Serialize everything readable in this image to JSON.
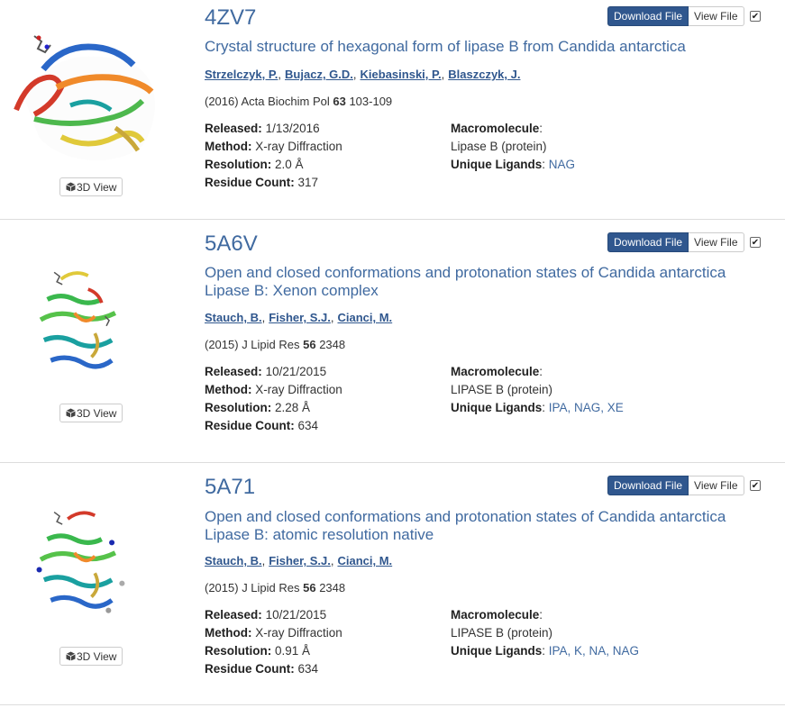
{
  "entries": [
    {
      "id": "4ZV7",
      "title": "Crystal structure of hexagonal form of lipase B from Candida antarctica",
      "authors": [
        "Strzelczyk, P.",
        "Bujacz, G.D.",
        "Kiebasinski, P.",
        "Blaszczyk, J."
      ],
      "citation_pre": "(2016) Acta Biochim Pol ",
      "citation_vol": "63",
      "citation_post": " 103-109",
      "released_label": "Released:",
      "released": "1/13/2016",
      "method_label": "Method:",
      "method": "X-ray Diffraction",
      "resolution_label": "Resolution:",
      "resolution": "2.0 Å",
      "residue_label": "Residue Count:",
      "residue": "317",
      "macro_label": "Macromolecule",
      "macro": "Lipase B (protein)",
      "ligands_label": "Unique Ligands",
      "ligands": "NAG"
    },
    {
      "id": "5A6V",
      "title": "Open and closed conformations and protonation states of Candida antarctica Lipase B: Xenon complex",
      "authors": [
        "Stauch, B.",
        "Fisher, S.J.",
        "Cianci, M."
      ],
      "citation_pre": "(2015) J Lipid Res ",
      "citation_vol": "56",
      "citation_post": " 2348",
      "released_label": "Released:",
      "released": "10/21/2015",
      "method_label": "Method:",
      "method": "X-ray Diffraction",
      "resolution_label": "Resolution:",
      "resolution": "2.28 Å",
      "residue_label": "Residue Count:",
      "residue": "634",
      "macro_label": "Macromolecule",
      "macro": "LIPASE B (protein)",
      "ligands_label": "Unique Ligands",
      "ligands": "IPA, NAG, XE"
    },
    {
      "id": "5A71",
      "title": "Open and closed conformations and protonation states of Candida antarctica Lipase B: atomic resolution native",
      "authors": [
        "Stauch, B.",
        "Fisher, S.J.",
        "Cianci, M."
      ],
      "citation_pre": "(2015) J Lipid Res ",
      "citation_vol": "56",
      "citation_post": " 2348",
      "released_label": "Released:",
      "released": "10/21/2015",
      "method_label": "Method:",
      "method": "X-ray Diffraction",
      "resolution_label": "Resolution:",
      "resolution": "0.91 Å",
      "residue_label": "Residue Count:",
      "residue": "634",
      "macro_label": "Macromolecule",
      "macro": "LIPASE B (protein)",
      "ligands_label": "Unique Ligands",
      "ligands": "IPA, K, NA, NAG"
    }
  ],
  "labels": {
    "download": "Download File",
    "view_file": "View File",
    "view3d": "3D View",
    "checkmark": "✔",
    "colon": ":",
    "comma": ","
  },
  "colors": {
    "accent": "#406aa0",
    "button": "#30578e"
  }
}
